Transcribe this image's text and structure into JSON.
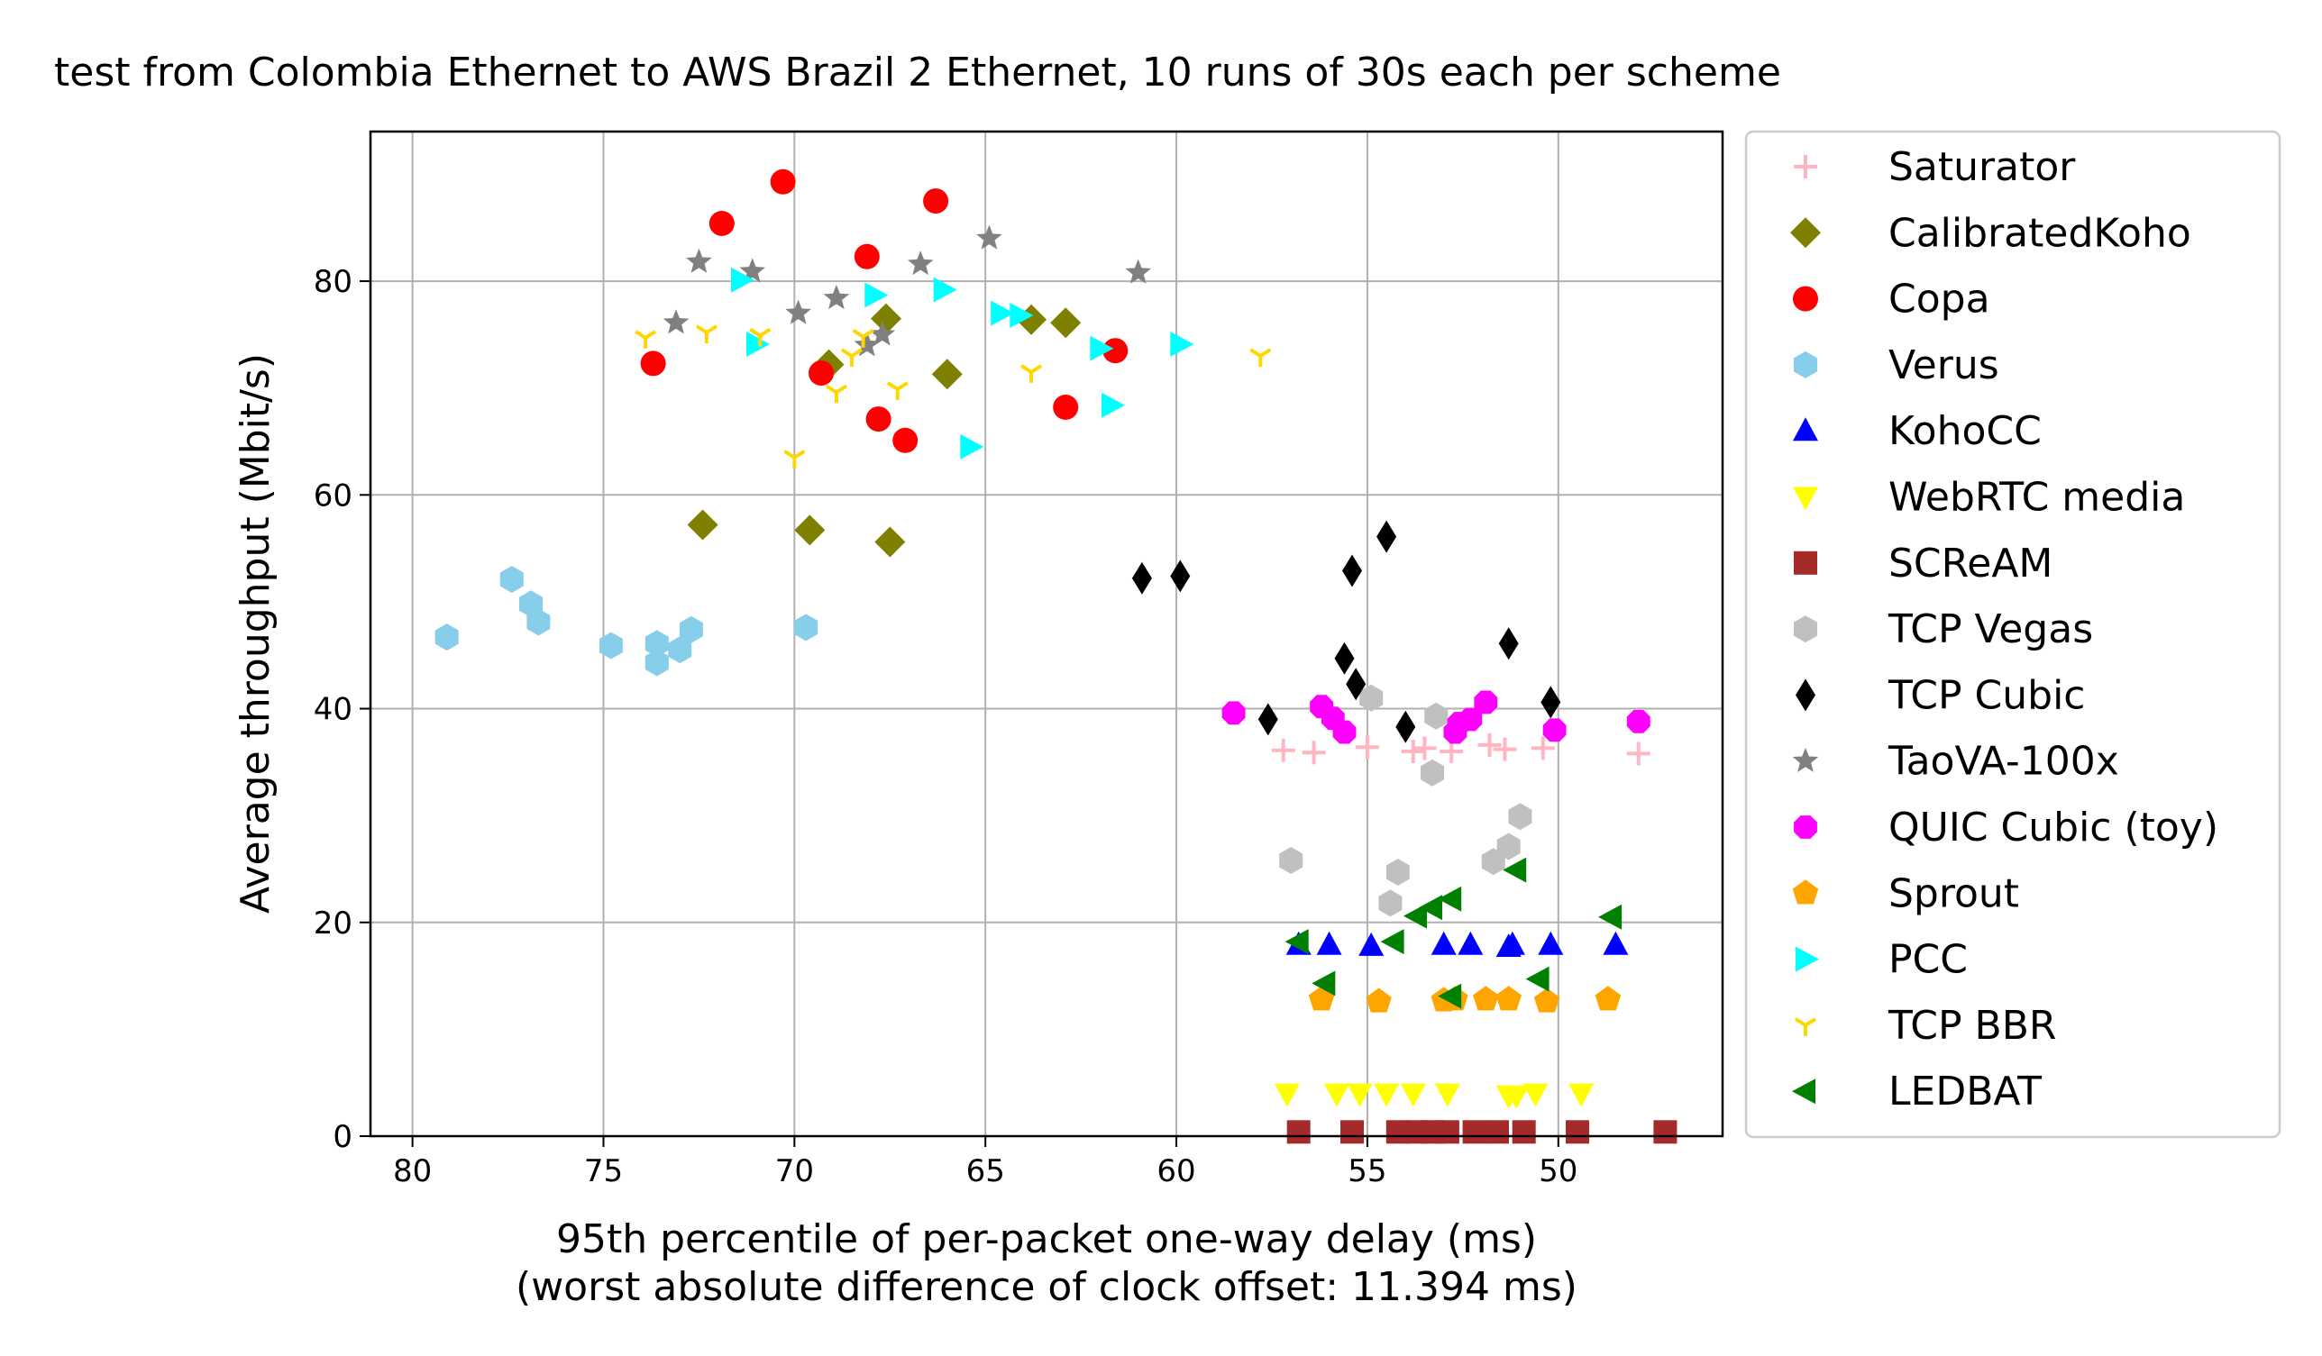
{
  "chart_data": {
    "type": "scatter",
    "title": "test from Colombia Ethernet to AWS Brazil 2 Ethernet, 10 runs of 30s each per scheme",
    "xlabel": "95th percentile of per-packet one-way delay (ms)",
    "xlabel2": "(worst absolute difference of clock offset: 11.394 ms)",
    "ylabel": "Average throughput (Mbit/s)",
    "xlim": [
      81.1,
      45.7
    ],
    "ylim": [
      0,
      94
    ],
    "x_inverted": true,
    "xticks": [
      80,
      75,
      70,
      65,
      60,
      55,
      50
    ],
    "yticks": [
      0,
      20,
      40,
      60,
      80
    ],
    "grid": true,
    "legend_position": "outside-right",
    "series": [
      {
        "name": "Saturator",
        "marker": "plus",
        "color": "#ffb6c1",
        "points": [
          [
            57.2,
            36.1
          ],
          [
            56.4,
            35.9
          ],
          [
            55.0,
            36.4
          ],
          [
            53.8,
            36.0
          ],
          [
            53.5,
            36.3
          ],
          [
            52.8,
            36.0
          ],
          [
            51.8,
            36.6
          ],
          [
            51.4,
            36.2
          ],
          [
            50.4,
            36.3
          ],
          [
            47.9,
            35.8
          ]
        ]
      },
      {
        "name": "CalibratedKoho",
        "marker": "diamond",
        "color": "#808000",
        "points": [
          [
            72.4,
            57.2
          ],
          [
            69.6,
            56.7
          ],
          [
            67.5,
            55.6
          ],
          [
            66.0,
            71.3
          ],
          [
            69.1,
            72.2
          ],
          [
            67.6,
            76.5
          ],
          [
            63.8,
            76.4
          ],
          [
            62.9,
            76.1
          ]
        ]
      },
      {
        "name": "Copa",
        "marker": "circle",
        "color": "#ff0000",
        "points": [
          [
            73.7,
            72.3
          ],
          [
            71.9,
            85.4
          ],
          [
            70.3,
            89.3
          ],
          [
            66.3,
            87.5
          ],
          [
            68.1,
            82.3
          ],
          [
            69.3,
            71.4
          ],
          [
            67.8,
            67.1
          ],
          [
            67.1,
            65.1
          ],
          [
            62.9,
            68.2
          ],
          [
            61.6,
            73.5
          ]
        ]
      },
      {
        "name": "Verus",
        "marker": "hexagon",
        "color": "#87ceeb",
        "points": [
          [
            79.1,
            46.7
          ],
          [
            77.4,
            52.1
          ],
          [
            76.9,
            49.8
          ],
          [
            76.7,
            48.1
          ],
          [
            74.8,
            45.9
          ],
          [
            73.6,
            46.1
          ],
          [
            73.6,
            44.3
          ],
          [
            73.0,
            45.5
          ],
          [
            72.7,
            47.4
          ],
          [
            69.7,
            47.6
          ]
        ]
      },
      {
        "name": "KohoCC",
        "marker": "triangle-up",
        "color": "#0000ff",
        "points": [
          [
            56.8,
            17.9
          ],
          [
            56.0,
            17.9
          ],
          [
            54.9,
            17.8
          ],
          [
            53.0,
            17.9
          ],
          [
            52.3,
            17.9
          ],
          [
            51.3,
            17.7
          ],
          [
            51.2,
            17.9
          ],
          [
            50.2,
            17.9
          ],
          [
            48.5,
            17.9
          ]
        ]
      },
      {
        "name": "WebRTC media",
        "marker": "triangle-down",
        "color": "#ffff00",
        "points": [
          [
            57.1,
            4.0
          ],
          [
            55.8,
            4.0
          ],
          [
            55.2,
            4.0
          ],
          [
            54.5,
            4.0
          ],
          [
            53.8,
            4.0
          ],
          [
            52.9,
            4.0
          ],
          [
            51.3,
            3.8
          ],
          [
            51.1,
            3.8
          ],
          [
            50.6,
            4.0
          ],
          [
            49.4,
            4.0
          ]
        ]
      },
      {
        "name": "SCReAM",
        "marker": "square",
        "color": "#a52a2a",
        "points": [
          [
            56.8,
            0.4
          ],
          [
            55.4,
            0.4
          ],
          [
            54.2,
            0.4
          ],
          [
            53.7,
            0.4
          ],
          [
            53.3,
            0.4
          ],
          [
            52.9,
            0.4
          ],
          [
            52.2,
            0.4
          ],
          [
            51.6,
            0.4
          ],
          [
            50.9,
            0.4
          ],
          [
            49.5,
            0.4
          ],
          [
            47.2,
            0.4
          ]
        ]
      },
      {
        "name": "TCP Vegas",
        "marker": "hexagon",
        "color": "#c0c0c0",
        "points": [
          [
            57.0,
            25.8
          ],
          [
            54.9,
            41.0
          ],
          [
            54.4,
            21.8
          ],
          [
            54.2,
            24.7
          ],
          [
            53.3,
            34.0
          ],
          [
            53.2,
            39.3
          ],
          [
            51.7,
            25.7
          ],
          [
            51.3,
            27.1
          ],
          [
            51.0,
            29.9
          ]
        ]
      },
      {
        "name": "TCP Cubic",
        "marker": "thin-diamond",
        "color": "#000000",
        "points": [
          [
            60.9,
            52.2
          ],
          [
            59.9,
            52.4
          ],
          [
            57.6,
            39.0
          ],
          [
            55.6,
            44.7
          ],
          [
            55.4,
            52.9
          ],
          [
            55.3,
            42.3
          ],
          [
            54.5,
            56.1
          ],
          [
            54.0,
            38.3
          ],
          [
            51.3,
            46.1
          ],
          [
            50.2,
            40.6
          ]
        ]
      },
      {
        "name": "TaoVA-100x",
        "marker": "star",
        "color": "#808080",
        "points": [
          [
            73.1,
            76.1
          ],
          [
            72.5,
            81.8
          ],
          [
            71.1,
            80.9
          ],
          [
            69.9,
            77.0
          ],
          [
            68.9,
            78.4
          ],
          [
            68.1,
            74.0
          ],
          [
            67.7,
            75.0
          ],
          [
            66.7,
            81.6
          ],
          [
            64.9,
            84.0
          ],
          [
            61.0,
            80.8
          ]
        ]
      },
      {
        "name": "QUIC Cubic (toy)",
        "marker": "octagon",
        "color": "#ff00ff",
        "points": [
          [
            58.5,
            39.6
          ],
          [
            56.2,
            40.2
          ],
          [
            55.9,
            39.1
          ],
          [
            55.6,
            37.8
          ],
          [
            52.7,
            37.8
          ],
          [
            52.6,
            38.6
          ],
          [
            52.3,
            39.0
          ],
          [
            51.9,
            40.6
          ],
          [
            50.1,
            38.0
          ],
          [
            47.9,
            38.8
          ]
        ]
      },
      {
        "name": "Sprout",
        "marker": "pentagon",
        "color": "#ffa500",
        "points": [
          [
            56.2,
            12.8
          ],
          [
            54.7,
            12.6
          ],
          [
            53.0,
            12.7
          ],
          [
            52.7,
            12.8
          ],
          [
            51.9,
            12.8
          ],
          [
            51.3,
            12.8
          ],
          [
            50.3,
            12.6
          ],
          [
            48.7,
            12.8
          ]
        ]
      },
      {
        "name": "PCC",
        "marker": "triangle-right",
        "color": "#00ffff",
        "points": [
          [
            71.4,
            80.1
          ],
          [
            71.0,
            74.1
          ],
          [
            67.9,
            78.7
          ],
          [
            66.1,
            79.2
          ],
          [
            65.4,
            64.5
          ],
          [
            64.6,
            77.0
          ],
          [
            64.1,
            76.8
          ],
          [
            62.0,
            73.7
          ],
          [
            61.7,
            68.4
          ],
          [
            59.9,
            74.1
          ]
        ]
      },
      {
        "name": "TCP BBR",
        "marker": "tri-down",
        "color": "#ffd700",
        "points": [
          [
            73.9,
            74.7
          ],
          [
            72.3,
            75.2
          ],
          [
            70.9,
            74.9
          ],
          [
            70.0,
            63.5
          ],
          [
            68.9,
            69.6
          ],
          [
            68.5,
            73.0
          ],
          [
            68.2,
            74.8
          ],
          [
            67.3,
            69.9
          ],
          [
            63.8,
            71.5
          ],
          [
            57.8,
            73.0
          ]
        ]
      },
      {
        "name": "LEDBAT",
        "marker": "triangle-left",
        "color": "#008000",
        "points": [
          [
            56.8,
            18.2
          ],
          [
            56.1,
            14.3
          ],
          [
            54.3,
            18.2
          ],
          [
            53.7,
            20.6
          ],
          [
            53.3,
            21.4
          ],
          [
            52.8,
            22.2
          ],
          [
            52.8,
            13.1
          ],
          [
            51.1,
            24.9
          ],
          [
            50.5,
            14.7
          ],
          [
            48.6,
            20.5
          ]
        ]
      }
    ]
  }
}
